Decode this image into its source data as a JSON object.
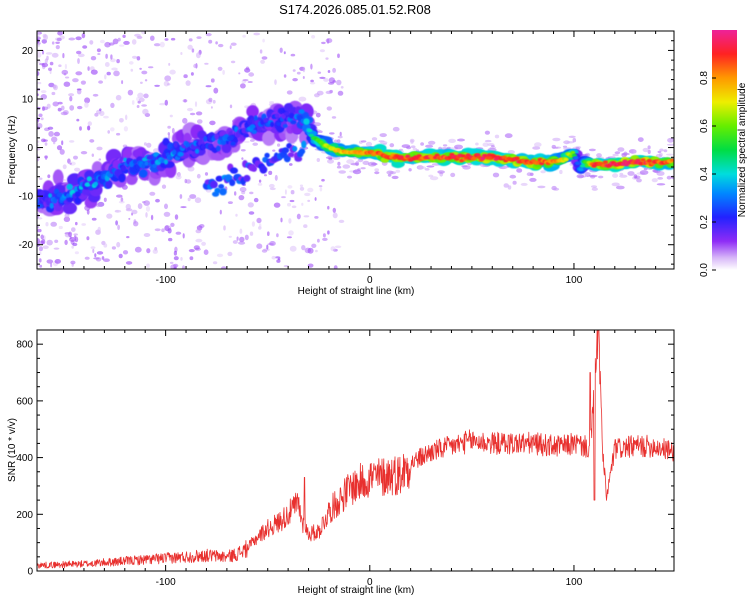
{
  "title": "S174.2026.085.01.52.R08",
  "colors": {
    "snr_line": "#e8302e",
    "spectrogram_low": "#a46cf0",
    "background": "#ffffff",
    "axis": "#000000"
  },
  "chart_data": [
    {
      "type": "heatmap",
      "name": "spectrogram",
      "xlabel": "Height of straight line (km)",
      "ylabel": "Frequency (Hz)",
      "xlim": [
        -163,
        149
      ],
      "ylim": [
        -25,
        24
      ],
      "xticks": [
        -100,
        0,
        100
      ],
      "yticks": [
        -20,
        -10,
        0,
        10,
        20
      ],
      "grid": false,
      "ridge": {
        "description": "frequency of peak normalized spectral amplitude vs height",
        "x": [
          -163,
          -150,
          -140,
          -130,
          -120,
          -110,
          -100,
          -90,
          -80,
          -70,
          -60,
          -50,
          -40,
          -32,
          -28,
          -20,
          -10,
          0,
          10,
          20,
          40,
          60,
          80,
          90,
          95,
          100,
          101,
          103,
          105,
          110,
          120,
          130,
          140,
          149
        ],
        "y": [
          -11,
          -10,
          -8,
          -6,
          -4,
          -3,
          -2,
          0,
          1,
          2,
          4,
          5,
          6,
          6,
          2,
          0,
          -1,
          -1,
          -2,
          -2,
          -2,
          -2,
          -3,
          -3,
          -2.5,
          -1,
          -2,
          -5,
          -3,
          -3.5,
          -3.5,
          -3,
          -3,
          -3
        ],
        "amplitude": [
          0.25,
          0.3,
          0.3,
          0.3,
          0.3,
          0.3,
          0.3,
          0.25,
          0.25,
          0.25,
          0.25,
          0.25,
          0.25,
          0.3,
          0.5,
          0.7,
          0.8,
          0.85,
          0.9,
          0.9,
          0.9,
          0.95,
          0.9,
          0.85,
          0.7,
          0.6,
          0.3,
          0.3,
          0.5,
          0.9,
          0.95,
          0.95,
          0.9,
          0.85
        ]
      },
      "secondary_branch": {
        "x": [
          -80,
          -70,
          -60,
          -50,
          -40,
          -32
        ],
        "y": [
          -8,
          -7,
          -5,
          -3,
          -1,
          0
        ]
      },
      "colorbar": {
        "label": "Normalized spectral amplitude",
        "range": [
          0,
          1
        ],
        "ticks": [
          0.0,
          0.2,
          0.4,
          0.6,
          0.8
        ],
        "tick_labels": [
          "0.0",
          "0.2",
          "0.4",
          "0.6",
          "0.8"
        ]
      }
    },
    {
      "type": "line",
      "name": "snr",
      "xlabel": "Height of straight line (km)",
      "ylabel": "SNR (10 * v/v)",
      "xlim": [
        -163,
        149
      ],
      "ylim": [
        0,
        850
      ],
      "xticks": [
        -100,
        0,
        100
      ],
      "yticks": [
        0,
        200,
        400,
        600,
        800
      ],
      "grid": false,
      "series": [
        {
          "name": "SNR",
          "x": [
            -163,
            -140,
            -120,
            -100,
            -90,
            -80,
            -70,
            -65,
            -60,
            -55,
            -50,
            -45,
            -40,
            -35,
            -33,
            -30,
            -25,
            -20,
            -15,
            -10,
            -5,
            0,
            5,
            10,
            15,
            20,
            25,
            30,
            40,
            50,
            60,
            70,
            80,
            90,
            95,
            100,
            105,
            108,
            110,
            112,
            114,
            116,
            120,
            130,
            140,
            149
          ],
          "y": [
            20,
            25,
            35,
            45,
            50,
            55,
            50,
            60,
            80,
            120,
            150,
            170,
            200,
            240,
            170,
            130,
            140,
            210,
            250,
            290,
            310,
            330,
            330,
            340,
            340,
            380,
            400,
            420,
            440,
            460,
            450,
            450,
            450,
            440,
            440,
            450,
            440,
            430,
            640,
            860,
            420,
            260,
            430,
            440,
            440,
            420
          ],
          "spikes": [
            {
              "x": 112,
              "y": 850
            },
            {
              "x": 108,
              "y": 700
            },
            {
              "x": 110,
              "y": 250
            },
            {
              "x": -32,
              "y": 330
            }
          ]
        }
      ]
    }
  ]
}
